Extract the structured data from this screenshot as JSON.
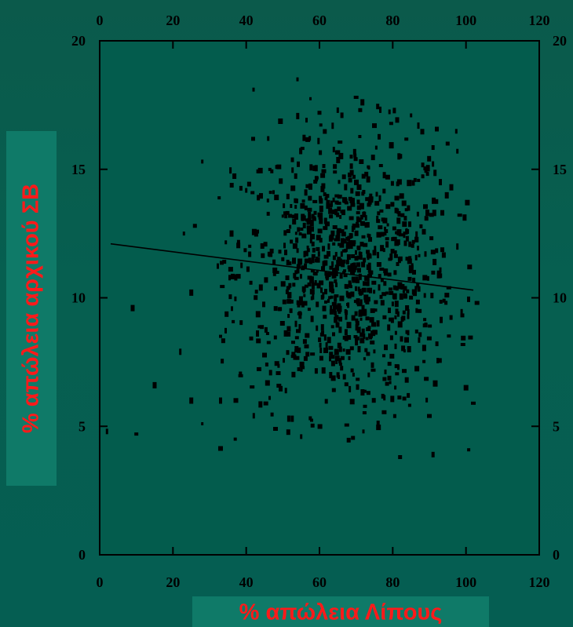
{
  "chart_data": {
    "type": "scatter",
    "xlabel": "% απώλεια Λίπους",
    "ylabel": "% απώλεια αρχικού ΣΒ",
    "xlim": [
      0,
      120
    ],
    "ylim": [
      0,
      20
    ],
    "x_ticks": [
      "0",
      "20",
      "40",
      "60",
      "80",
      "100",
      "120"
    ],
    "y_ticks": [
      "0",
      "5",
      "10",
      "15",
      "20"
    ],
    "top_x_ticks": [
      "0",
      "20",
      "40",
      "60",
      "80",
      "100",
      "120"
    ],
    "right_y_ticks": [
      "0",
      "5",
      "10",
      "15",
      "20"
    ],
    "grid": false,
    "legend": "none",
    "trendline": {
      "x": [
        3,
        102
      ],
      "y": [
        12.1,
        10.3
      ]
    },
    "points_sample": [
      [
        2,
        4.8
      ],
      [
        9,
        9.6
      ],
      [
        10,
        4.7
      ],
      [
        15,
        6.6
      ],
      [
        22,
        7.9
      ],
      [
        23,
        12.5
      ],
      [
        25,
        10.2
      ],
      [
        25,
        6.0
      ],
      [
        26,
        12.8
      ],
      [
        28,
        15.3
      ],
      [
        28,
        5.1
      ],
      [
        33,
        8.5
      ],
      [
        33,
        6.0
      ],
      [
        34,
        11.4
      ],
      [
        36,
        12.5
      ],
      [
        37,
        4.5
      ],
      [
        42,
        18.1
      ],
      [
        44,
        10.4
      ],
      [
        46,
        16.2
      ],
      [
        48,
        4.9
      ],
      [
        54,
        18.5
      ],
      [
        55,
        4.6
      ],
      [
        60,
        17.2
      ],
      [
        65,
        17.3
      ],
      [
        70,
        17.8
      ],
      [
        75,
        16.7
      ],
      [
        72,
        4.8
      ],
      [
        76,
        5.1
      ],
      [
        82,
        3.8
      ],
      [
        85,
        17.1
      ],
      [
        87,
        16.7
      ],
      [
        91,
        3.9
      ],
      [
        93,
        14.5
      ],
      [
        95,
        16.0
      ],
      [
        96,
        14.3
      ],
      [
        100,
        6.5
      ],
      [
        102,
        5.9
      ],
      [
        103,
        9.8
      ],
      [
        101,
        11.2
      ],
      [
        90,
        5.4
      ]
    ],
    "cloud": {
      "n_points": 1000,
      "x_mean": 67,
      "x_sd": 15,
      "y_mean": 11,
      "y_sd": 2.7,
      "x_range": [
        30,
        102
      ],
      "y_range": [
        4,
        18.5
      ]
    },
    "colors": {
      "marker": "#000000",
      "axes": "#000000",
      "plot_background": "#035c4d",
      "label_text": "#ff1a1a",
      "label_box": "#0f7a68"
    }
  }
}
